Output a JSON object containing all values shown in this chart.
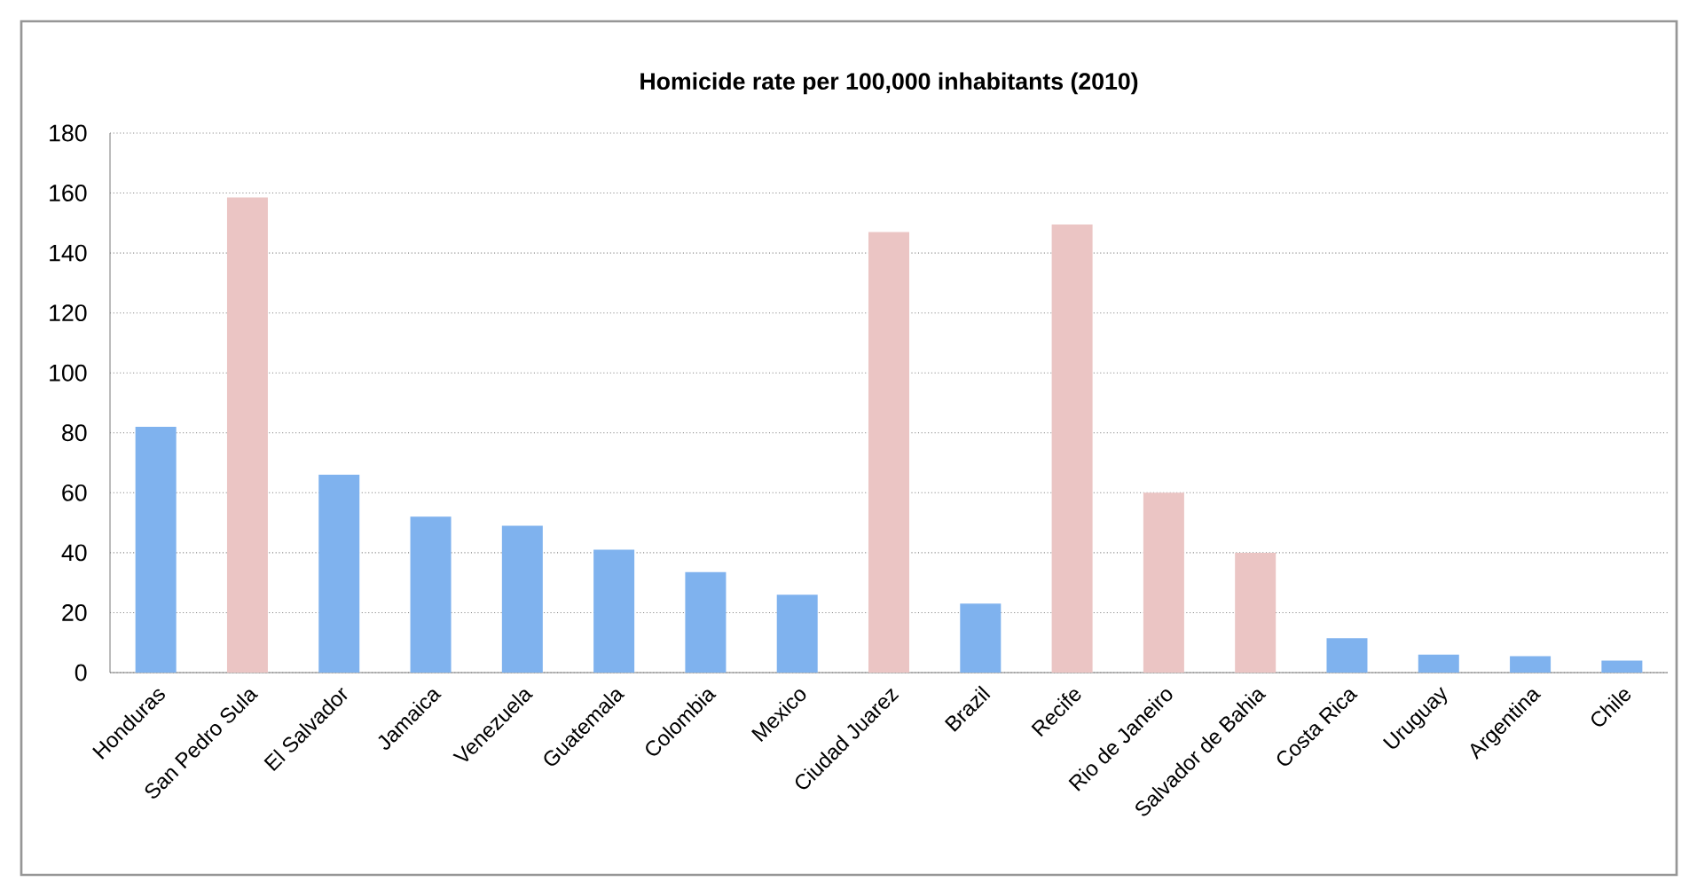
{
  "chart_data": {
    "type": "bar",
    "title": "Homicide rate per 100,000 inhabitants (2010)",
    "categories": [
      "Honduras",
      "San Pedro Sula",
      "El Salvador",
      "Jamaica",
      "Venezuela",
      "Guatemala",
      "Colombia",
      "Mexico",
      "Ciudad Juarez",
      "Brazil",
      "Recife",
      "Rio de Janeiro",
      "Salvador de Bahia",
      "Costa Rica",
      "Uruguay",
      "Argentina",
      "Chile"
    ],
    "values": [
      82,
      158.5,
      66,
      52,
      49,
      41,
      33.5,
      26,
      147,
      23,
      149.5,
      60,
      40,
      11.5,
      6,
      5.5,
      4
    ],
    "colors": [
      "#7fb2ee",
      "#ebc5c4",
      "#7fb2ee",
      "#7fb2ee",
      "#7fb2ee",
      "#7fb2ee",
      "#7fb2ee",
      "#7fb2ee",
      "#ebc5c4",
      "#7fb2ee",
      "#ebc5c4",
      "#ebc5c4",
      "#ebc5c4",
      "#7fb2ee",
      "#7fb2ee",
      "#7fb2ee",
      "#7fb2ee"
    ],
    "ylim": [
      0,
      180
    ],
    "yticks": [
      0,
      20,
      40,
      60,
      80,
      100,
      120,
      140,
      160,
      180
    ],
    "grid": "y"
  }
}
